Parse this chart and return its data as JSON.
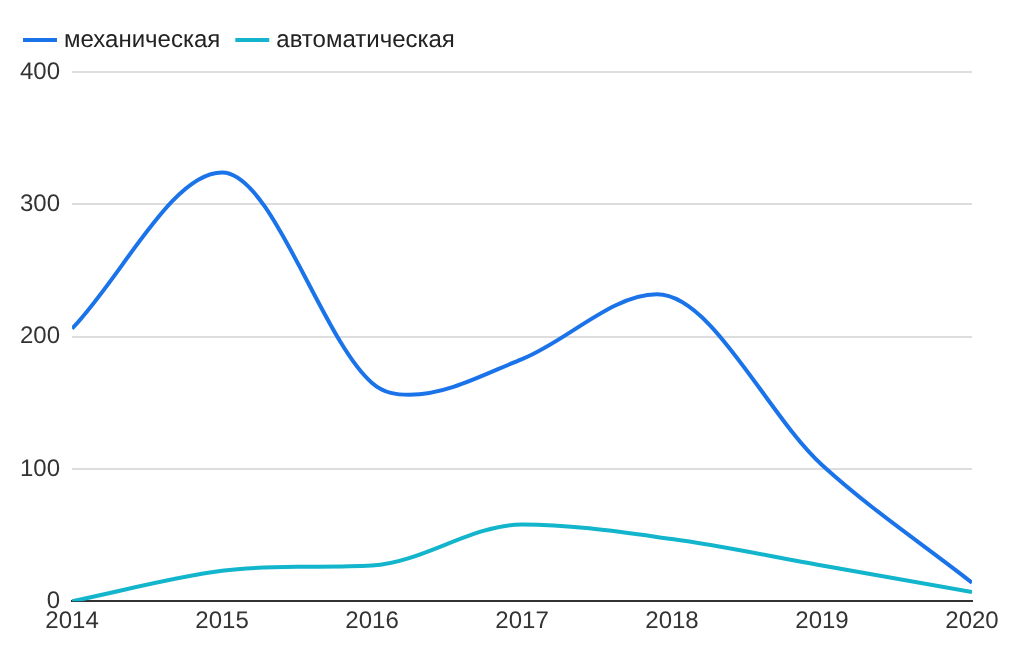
{
  "chart_data": {
    "type": "line",
    "xlim": [
      2014,
      2020
    ],
    "xticks": [
      2014,
      2015,
      2016,
      2017,
      2018,
      2019,
      2020
    ],
    "ylim": [
      0,
      400
    ],
    "yticks": [
      0,
      100,
      200,
      300,
      400
    ],
    "grid": "y",
    "legend": "top left",
    "marker": "none",
    "series": [
      {
        "name": "механическая",
        "color": "#1a73e8",
        "x": [
          2014,
          2015,
          2016,
          2016.25,
          2017,
          2017.9,
          2019,
          2020
        ],
        "values": [
          206,
          324,
          165,
          156,
          183,
          232,
          103,
          14
        ]
      },
      {
        "name": "автоматическая",
        "color": "#12b5cb",
        "x": [
          2014,
          2015,
          2015.5,
          2016,
          2017,
          2018,
          2019,
          2020
        ],
        "values": [
          0,
          23,
          26,
          27,
          58,
          47,
          27,
          7
        ]
      }
    ]
  }
}
